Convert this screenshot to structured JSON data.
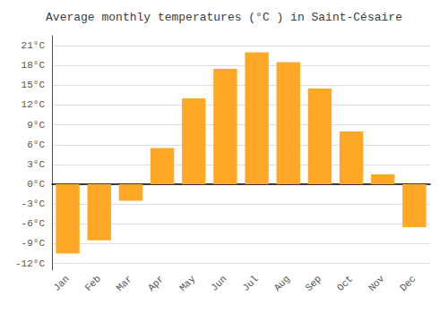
{
  "chart_data": {
    "type": "bar",
    "title": "Average monthly temperatures (°C ) in Saint-Césaire",
    "categories": [
      "Jan",
      "Feb",
      "Mar",
      "Apr",
      "May",
      "Jun",
      "Jul",
      "Aug",
      "Sep",
      "Oct",
      "Nov",
      "Dec"
    ],
    "values": [
      -10.5,
      -8.5,
      -2.5,
      5.5,
      13.0,
      17.5,
      20.0,
      18.5,
      14.5,
      8.0,
      1.5,
      -6.5
    ],
    "color": "#FFA726",
    "ylim": [
      -13.0,
      22.5
    ],
    "yticks": [
      {
        "value": -12,
        "label": "-12°C"
      },
      {
        "value": -9,
        "label": "-9°C"
      },
      {
        "value": -6,
        "label": "-6°C"
      },
      {
        "value": -3,
        "label": "-3°C"
      },
      {
        "value": 0,
        "label": "0°C"
      },
      {
        "value": 3,
        "label": "3°C"
      },
      {
        "value": 6,
        "label": "6°C"
      },
      {
        "value": 9,
        "label": "9°C"
      },
      {
        "value": 12,
        "label": "12°C"
      },
      {
        "value": 15,
        "label": "15°C"
      },
      {
        "value": 18,
        "label": "18°C"
      },
      {
        "value": 21,
        "label": "21°C"
      }
    ],
    "grid": true
  }
}
